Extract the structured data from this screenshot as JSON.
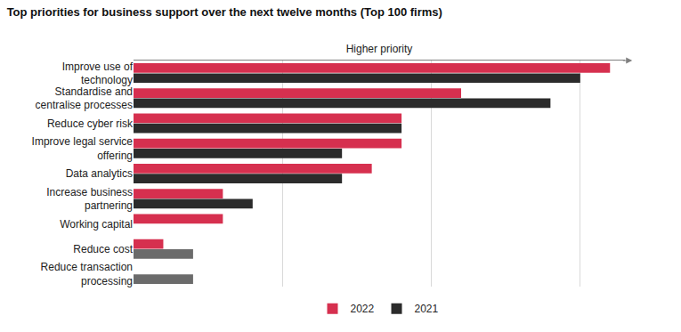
{
  "chart_data": {
    "type": "bar",
    "title": "Top priorities for business support over the next twelve months (Top 100 firms)",
    "x_label": "Higher priority",
    "orientation": "horizontal",
    "categories": [
      "Improve use of\ntechnology",
      "Standardise and\ncentralise processes",
      "Reduce cyber risk",
      "Improve legal service\noffering",
      "Data analytics",
      "Increase business\npartnering",
      "Working capital",
      "Reduce cost",
      "Reduce transaction\nprocessing"
    ],
    "series": [
      {
        "name": "2022",
        "color": "#d6304f",
        "values": [
          32,
          22,
          18,
          18,
          16,
          6,
          6,
          2,
          null
        ]
      },
      {
        "name": "2021",
        "color": "#2b2b2b",
        "colors": [
          "#2b2b2b",
          "#2b2b2b",
          "#2b2b2b",
          "#2b2b2b",
          "#2b2b2b",
          "#2b2b2b",
          "#2b2b2b",
          "#6b6b6b",
          "#6b6b6b"
        ],
        "values": [
          30,
          28,
          18,
          14,
          14,
          8,
          null,
          4,
          4
        ]
      }
    ],
    "xlim": [
      0,
      33
    ],
    "xticks": [
      0,
      10,
      20,
      30
    ],
    "grid": true,
    "tick_labels": "y",
    "legend": "bottom"
  }
}
